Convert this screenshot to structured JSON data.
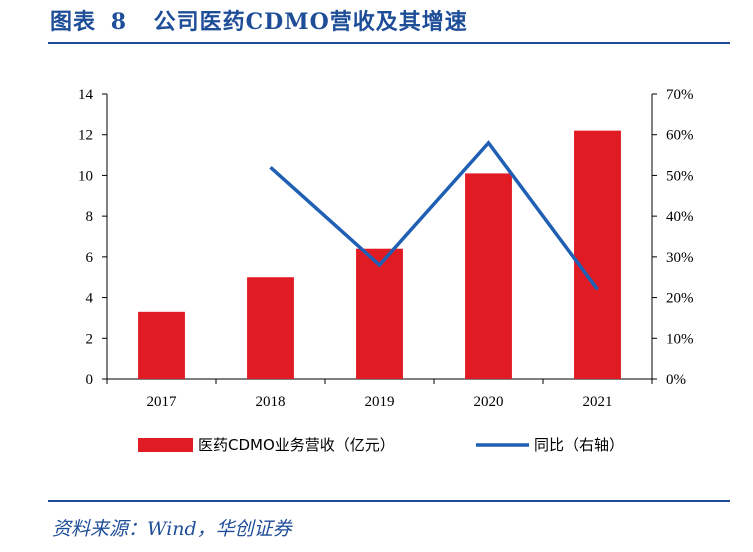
{
  "header": {
    "figure_label": "图表",
    "figure_number": "8",
    "title": "公司医药CDMO营收及其增速"
  },
  "source": "资料来源：Wind，华创证券",
  "colors": {
    "bar": "#e01b24",
    "line": "#1f5fb4",
    "accent": "#1f4e99"
  },
  "chart_data": {
    "type": "bar",
    "categories": [
      "2017",
      "2018",
      "2019",
      "2020",
      "2021"
    ],
    "series": [
      {
        "name": "医药CDMO业务营收（亿元）",
        "type": "bar",
        "axis": "left",
        "values": [
          3.3,
          5.0,
          6.4,
          10.1,
          12.2
        ]
      },
      {
        "name": "同比（右轴）",
        "type": "line",
        "axis": "right",
        "values": [
          null,
          0.52,
          0.28,
          0.58,
          0.22
        ]
      }
    ],
    "y_left": {
      "ylim": [
        0,
        14
      ],
      "ticks": [
        "0",
        "2",
        "4",
        "6",
        "8",
        "10",
        "12",
        "14"
      ]
    },
    "y_right": {
      "ylim": [
        0,
        0.7
      ],
      "ticks": [
        "0%",
        "10%",
        "20%",
        "30%",
        "40%",
        "50%",
        "60%",
        "70%"
      ]
    },
    "legend_position": "bottom",
    "grid": false
  }
}
